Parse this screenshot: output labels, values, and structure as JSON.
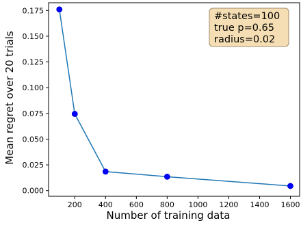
{
  "chart_data": {
    "type": "line",
    "title": "",
    "xlabel": "Number of training data",
    "ylabel": "Mean regret over 20 trials",
    "xlim": [
      30,
      1660
    ],
    "ylim": [
      -0.0055,
      0.1825
    ],
    "xticks": [
      200,
      400,
      600,
      800,
      1000,
      1200,
      1400,
      1600
    ],
    "xtick_labels": [
      "200",
      "400",
      "600",
      "800",
      "1000",
      "1200",
      "1400",
      "1600"
    ],
    "yticks": [
      0.0,
      0.025,
      0.05,
      0.075,
      0.1,
      0.125,
      0.15,
      0.175
    ],
    "ytick_labels": [
      "0.000",
      "0.025",
      "0.050",
      "0.075",
      "0.100",
      "0.125",
      "0.150",
      "0.175"
    ],
    "grid": false,
    "legend": "none",
    "series": [
      {
        "x": [
          100,
          200,
          400,
          800,
          1600
        ],
        "y": [
          0.176,
          0.0745,
          0.0185,
          0.0135,
          0.0045
        ],
        "line_color": "#1f77b4",
        "marker_color": "#0000ff"
      }
    ],
    "annotation": {
      "lines": [
        "#states=100",
        "true p=0.65",
        "radius=0.02"
      ],
      "placement": "top-right",
      "background": "#f5deb3",
      "border_color": "#a08c6e"
    }
  }
}
